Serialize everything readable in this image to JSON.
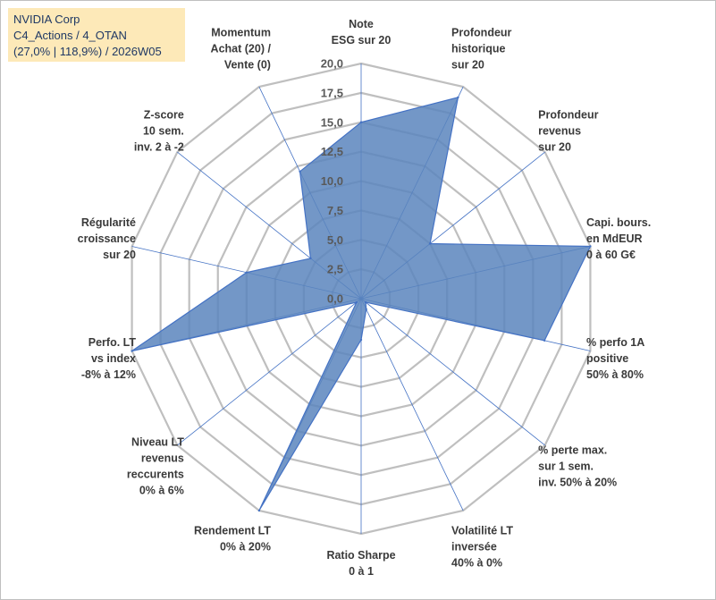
{
  "title_box": {
    "line1": "NVIDIA Corp",
    "line2": "C4_Actions / 4_OTAN",
    "line3": "(27,0% | 118,9%) / 2026W05"
  },
  "chart_data": {
    "type": "radar",
    "title": "NVIDIA Corp",
    "rmin": 0,
    "rmax": 20,
    "ticks": [
      "0,0",
      "2,5",
      "5,0",
      "7,5",
      "10,0",
      "12,5",
      "15,0",
      "17,5",
      "20,0"
    ],
    "axes": [
      [
        "Note",
        "ESG sur 20"
      ],
      [
        "Profondeur",
        "historique",
        "sur 20"
      ],
      [
        "Profondeur",
        "revenus",
        "sur 20"
      ],
      [
        "Capi. bours.",
        "en MdEUR",
        "0 à 60 G€"
      ],
      [
        "% perfo 1A",
        "positive",
        "50% à 80%"
      ],
      [
        "% perte max.",
        "sur 1 sem.",
        "inv. 50% à 20%"
      ],
      [
        "Volatilité LT",
        "inversée",
        "40% à 0%"
      ],
      [
        "Ratio Sharpe",
        "0 à 1"
      ],
      [
        "Rendement LT",
        "0% à 20%"
      ],
      [
        "Niveau LT",
        "revenus",
        "reccurents",
        "0% à 6%"
      ],
      [
        "Perfo. LT",
        "vs index",
        "-8% à 12%"
      ],
      [
        "Régularité",
        "croissance",
        "sur 20"
      ],
      [
        "Z-score",
        "10 sem.",
        "inv. 2 à -2"
      ],
      [
        "Momentum",
        "Achat (20) /",
        "Vente (0)"
      ]
    ],
    "series": [
      {
        "name": "NVIDIA Corp",
        "values": [
          15.0,
          19.0,
          7.5,
          20.0,
          16.0,
          0.5,
          1.0,
          3.5,
          20.0,
          0.5,
          20.0,
          10.0,
          5.5,
          12.0
        ],
        "color": "#5b85bd"
      }
    ],
    "grid_color": "#bfbfbf",
    "spoke_color": "#4472c4"
  }
}
